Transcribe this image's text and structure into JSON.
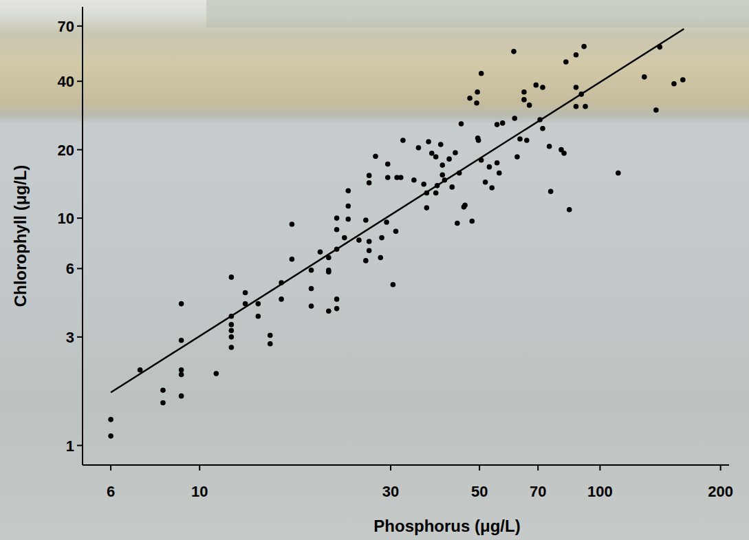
{
  "chart_data": {
    "type": "scatter",
    "x_label": "Phosphorus (μg/L)",
    "y_label": "Chlorophyll (μg/L)",
    "log": true,
    "xlim": [
      5.1,
      210
    ],
    "ylim": [
      0.82,
      85
    ],
    "xticks": [
      6,
      10,
      30,
      50,
      70,
      100,
      200
    ],
    "yticks": [
      1,
      3,
      6,
      10,
      20,
      40,
      70
    ],
    "series": [
      {
        "type": "scatter",
        "color": "#000000",
        "marker": "circle",
        "x": [
          6,
          6,
          7.1,
          8.1,
          8.1,
          9,
          9,
          9,
          9,
          9,
          11,
          12,
          12,
          12,
          12,
          12,
          12,
          13,
          13,
          14,
          14,
          15,
          15,
          16,
          16,
          17,
          17,
          19,
          19,
          19,
          20,
          21,
          21,
          21,
          21,
          22,
          22,
          22,
          22,
          22,
          23,
          23.5,
          23.5,
          23.5,
          25,
          26,
          26,
          26.5,
          26.5,
          26.5,
          26.5,
          27.5,
          28.3,
          28.5,
          29.3,
          29.5,
          29.5,
          30.4,
          30.9,
          31.1,
          31.8,
          32.2,
          34.3,
          35.2,
          36.3,
          36.9,
          36.9,
          37.3,
          38,
          38.9,
          38.9,
          39.2,
          40,
          40.4,
          40.4,
          40.9,
          42,
          42.7,
          43.5,
          44,
          44.5,
          45,
          45.7,
          46,
          47.3,
          47.9,
          49.2,
          49.4,
          49.5,
          49.7,
          50.5,
          50.5,
          51.7,
          52.9,
          53.7,
          55.3,
          55.3,
          56,
          57.1,
          60.9,
          61.2,
          62.1,
          63.1,
          64.6,
          64.6,
          65.6,
          66.6,
          69.2,
          70.8,
          71.9,
          71.9,
          74.7,
          75.3,
          80,
          81.3,
          82.2,
          83.8,
          87.1,
          87.1,
          87.1,
          89.8,
          91.2,
          91.9,
          111,
          129,
          138,
          141,
          153,
          161
        ],
        "values": [
          1.3,
          1.1,
          2.15,
          1.75,
          1.54,
          4.2,
          2.9,
          2.15,
          2.05,
          1.65,
          2.07,
          5.5,
          3.7,
          3.4,
          3.2,
          3.0,
          2.7,
          4.7,
          4.2,
          4.2,
          3.7,
          3.05,
          2.8,
          5.2,
          4.4,
          9.4,
          6.6,
          4.9,
          4.1,
          5.9,
          7.1,
          5.9,
          5.8,
          6.7,
          3.9,
          4.4,
          4.0,
          7.3,
          8.9,
          10,
          8.2,
          9.9,
          11.3,
          13.2,
          8.0,
          9.8,
          6.5,
          7.2,
          7.9,
          15.4,
          14.3,
          18.7,
          6.7,
          8.2,
          9.6,
          15.1,
          17.3,
          5.1,
          8.75,
          15.1,
          15.1,
          22,
          14.7,
          20.4,
          14.1,
          12.9,
          11.1,
          21.7,
          19.3,
          18.6,
          12.9,
          13.9,
          21.1,
          15.5,
          17.1,
          14.7,
          18.2,
          13.7,
          19.4,
          9.5,
          15.8,
          26,
          11.2,
          11.4,
          33.7,
          9.7,
          32.1,
          35.9,
          22.5,
          22,
          43.3,
          18,
          14.4,
          16.8,
          13.6,
          25.8,
          17.5,
          15.8,
          26.2,
          54.1,
          27.5,
          18.6,
          22.3,
          35.9,
          33.2,
          22,
          31.4,
          38.5,
          27.1,
          37.6,
          24.8,
          20.7,
          13.1,
          20,
          19.3,
          48.7,
          10.9,
          52.3,
          37.6,
          31.0,
          35.1,
          56.9,
          31.0,
          15.8,
          41.8,
          29.9,
          56.6,
          39,
          40.6
        ]
      },
      {
        "type": "line",
        "color": "#000000",
        "line_style": "solid",
        "x": [
          6,
          162
        ],
        "values": [
          1.71,
          68
        ]
      }
    ]
  }
}
